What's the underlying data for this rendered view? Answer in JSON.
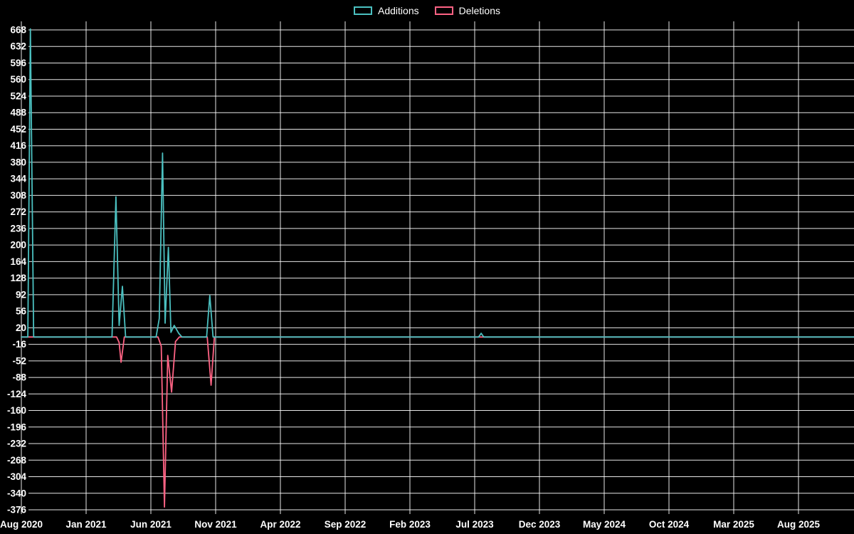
{
  "legend": {
    "additions_label": "Additions",
    "deletions_label": "Deletions"
  },
  "colors": {
    "additions": "#4bc0c0",
    "deletions": "#ff6384",
    "grid": "rgba(255,255,255,0.9)",
    "background": "#000000",
    "text": "#ffffff"
  },
  "chart_data": {
    "type": "line",
    "title": "",
    "xlabel": "",
    "ylabel": "",
    "grid": true,
    "legend_position": "top-center",
    "x_unit": "months since Aug 2020",
    "x_tick_interval_months": 5,
    "x_ticks": [
      "Aug 2020",
      "Jan 2021",
      "Jun 2021",
      "Nov 2021",
      "Apr 2022",
      "Sep 2022",
      "Feb 2023",
      "Jul 2023",
      "Dec 2023",
      "May 2024",
      "Oct 2024",
      "Mar 2025",
      "Aug 2025"
    ],
    "y_ticks": [
      668,
      632,
      596,
      560,
      524,
      488,
      452,
      416,
      380,
      344,
      308,
      272,
      236,
      200,
      164,
      128,
      92,
      56,
      20,
      -16,
      -52,
      -88,
      -124,
      -160,
      -196,
      -232,
      -268,
      -304,
      -340,
      -376
    ],
    "ylim": [
      -385,
      687
    ],
    "series": [
      {
        "name": "Additions",
        "color": "#4bc0c0",
        "points": [
          [
            0,
            0
          ],
          [
            0.5,
            0
          ],
          [
            0.7,
            670
          ],
          [
            0.95,
            0
          ],
          [
            7.0,
            0
          ],
          [
            7.3,
            305
          ],
          [
            7.55,
            25
          ],
          [
            7.8,
            110
          ],
          [
            8.05,
            0
          ],
          [
            10.4,
            0
          ],
          [
            10.65,
            40
          ],
          [
            10.9,
            400
          ],
          [
            11.1,
            30
          ],
          [
            11.35,
            195
          ],
          [
            11.55,
            10
          ],
          [
            11.8,
            25
          ],
          [
            12.15,
            8
          ],
          [
            12.4,
            0
          ],
          [
            14.3,
            0
          ],
          [
            14.55,
            90
          ],
          [
            14.8,
            0
          ],
          [
            35.3,
            0
          ],
          [
            35.5,
            8
          ],
          [
            35.7,
            0
          ],
          [
            64.3,
            0
          ]
        ]
      },
      {
        "name": "Deletions",
        "color": "#ff6384",
        "points": [
          [
            0,
            0
          ],
          [
            7.35,
            0
          ],
          [
            7.55,
            -12
          ],
          [
            7.7,
            -55
          ],
          [
            7.95,
            0
          ],
          [
            10.55,
            0
          ],
          [
            10.8,
            -20
          ],
          [
            11.05,
            -370
          ],
          [
            11.3,
            -40
          ],
          [
            11.6,
            -120
          ],
          [
            11.9,
            -10
          ],
          [
            12.2,
            0
          ],
          [
            14.35,
            0
          ],
          [
            14.65,
            -105
          ],
          [
            14.9,
            0
          ],
          [
            64.3,
            0
          ]
        ]
      }
    ]
  }
}
